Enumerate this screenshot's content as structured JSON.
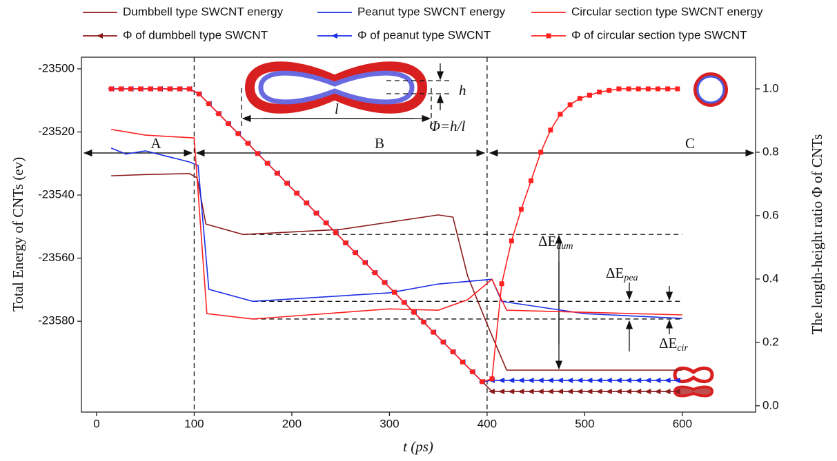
{
  "chart_data": {
    "type": "line",
    "legend": "top",
    "xlabel": "t (ps)",
    "ylabel": "Total Energy of CNTs (ev)",
    "y2label": "The length-height ratio  Φ of  CNTs",
    "xlim": [
      -15.5,
      675
    ],
    "xticks": [
      0,
      100,
      200,
      300,
      400,
      500,
      600
    ],
    "ylim": [
      -23608.8,
      -23496.3
    ],
    "yticks": [
      -23500,
      -23520,
      -23540,
      -23560,
      -23580
    ],
    "y2lim": [
      -0.02,
      1.1
    ],
    "y2ticks": [
      {
        "value": 0,
        "label": "0.0"
      },
      0.2,
      0.4,
      0.6,
      0.8,
      {
        "value": 1,
        "label": "1.0"
      }
    ],
    "vlines": [
      100,
      400
    ],
    "reference_lines": [
      {
        "y": -23552.5,
        "x": [
          150,
          600
        ]
      },
      {
        "y": -23573.7,
        "x": [
          160,
          600
        ]
      },
      {
        "y": -23579.3,
        "x": [
          160,
          600
        ]
      }
    ],
    "x": [
      15,
      25,
      35,
      45,
      55,
      65,
      75,
      85,
      95,
      105,
      115,
      125,
      135,
      145,
      155,
      165,
      175,
      185,
      195,
      205,
      215,
      225,
      235,
      245,
      255,
      265,
      275,
      285,
      295,
      305,
      315,
      325,
      335,
      345,
      355,
      365,
      375,
      385,
      395,
      405,
      415,
      425,
      435,
      445,
      455,
      465,
      475,
      485,
      495,
      505,
      515,
      525,
      535,
      545,
      555,
      565,
      575,
      585,
      595
    ],
    "series": [
      {
        "name": "Dumbbell type SWCNT energy",
        "color": "#8b1a1a",
        "x": [
          15,
          50,
          95,
          103,
          112,
          150,
          250,
          350,
          365,
          380,
          400,
          420,
          600
        ],
        "values": [
          -23533.9,
          -23533.5,
          -23533.2,
          -23534.5,
          -23549.2,
          -23552.5,
          -23550.9,
          -23546.3,
          -23547,
          -23565.6,
          -23580.9,
          -23595.5,
          -23595.5
        ]
      },
      {
        "name": "Peanut type SWCNT energy",
        "color": "#1a2ee6",
        "x": [
          15,
          30,
          50,
          95,
          104,
          115,
          160,
          300,
          350,
          405,
          415,
          500,
          600
        ],
        "values": [
          -23525.1,
          -23527,
          -23526,
          -23529.5,
          -23530.6,
          -23569.9,
          -23573.7,
          -23571,
          -23568.2,
          -23566.7,
          -23573.7,
          -23577.6,
          -23579.1
        ]
      },
      {
        "name": "Circular section type SWCNT energy",
        "color": "#ff2020",
        "x": [
          15,
          50,
          100,
          113,
          160,
          300,
          350,
          380,
          405,
          420,
          600
        ],
        "values": [
          -23519.2,
          -23521,
          -23521.9,
          -23577.6,
          -23579.3,
          -23576.1,
          -23576.5,
          -23573.2,
          -23566.7,
          -23576.5,
          -23578
        ]
      },
      {
        "name": "Φ of dumbbell type SWCNT",
        "color": "#8b1a1a",
        "axis": "y2",
        "marker": "triangle-left",
        "values": [
          1,
          1,
          1,
          1,
          1,
          1,
          1,
          1,
          1,
          0.984,
          0.953,
          0.922,
          0.89,
          0.859,
          0.828,
          0.796,
          0.765,
          0.734,
          0.702,
          0.671,
          0.64,
          0.608,
          0.577,
          0.546,
          0.514,
          0.483,
          0.452,
          0.42,
          0.389,
          0.358,
          0.326,
          0.295,
          0.264,
          0.232,
          0.201,
          0.17,
          0.138,
          0.107,
          0.076,
          0.045,
          0.045,
          0.045,
          0.045,
          0.045,
          0.045,
          0.045,
          0.045,
          0.045,
          0.045,
          0.045,
          0.045,
          0.045,
          0.045,
          0.045,
          0.045,
          0.045,
          0.045,
          0.045,
          0.045
        ]
      },
      {
        "name": "Φ of peanut type SWCNT",
        "color": "#1a2ee6",
        "axis": "y2",
        "marker": "triangle-left",
        "values": [
          1,
          1,
          1,
          1,
          1,
          1,
          1,
          1,
          1,
          0.984,
          0.953,
          0.922,
          0.89,
          0.859,
          0.828,
          0.796,
          0.765,
          0.734,
          0.702,
          0.671,
          0.64,
          0.608,
          0.577,
          0.546,
          0.514,
          0.483,
          0.452,
          0.42,
          0.389,
          0.358,
          0.326,
          0.295,
          0.264,
          0.232,
          0.201,
          0.17,
          0.138,
          0.107,
          0.076,
          0.08,
          0.08,
          0.08,
          0.08,
          0.08,
          0.08,
          0.08,
          0.08,
          0.08,
          0.08,
          0.08,
          0.08,
          0.08,
          0.08,
          0.08,
          0.08,
          0.08,
          0.08,
          0.08,
          0.08
        ]
      },
      {
        "name": "Φ of circular section type SWCNT",
        "color": "#ff2020",
        "axis": "y2",
        "marker": "square",
        "values": [
          1,
          1,
          1,
          1,
          1,
          1,
          1,
          1,
          1,
          0.984,
          0.953,
          0.922,
          0.89,
          0.859,
          0.828,
          0.796,
          0.765,
          0.734,
          0.702,
          0.671,
          0.64,
          0.608,
          0.577,
          0.546,
          0.514,
          0.483,
          0.452,
          0.42,
          0.389,
          0.358,
          0.326,
          0.295,
          0.264,
          0.232,
          0.201,
          0.17,
          0.138,
          0.107,
          0.076,
          0.085,
          0.385,
          0.52,
          0.62,
          0.71,
          0.8,
          0.87,
          0.92,
          0.95,
          0.97,
          0.98,
          0.99,
          0.995,
          1,
          1,
          1,
          1,
          1,
          1,
          1
        ]
      }
    ],
    "annotations": {
      "regions": [
        "A",
        "B",
        "C"
      ],
      "h": "h",
      "l": "l",
      "phi_def": "Φ=h/l",
      "de_dum": [
        "ΔE",
        "dum"
      ],
      "de_pea": [
        "ΔE",
        "pea"
      ],
      "de_cir": [
        "ΔE",
        "cir"
      ]
    }
  }
}
